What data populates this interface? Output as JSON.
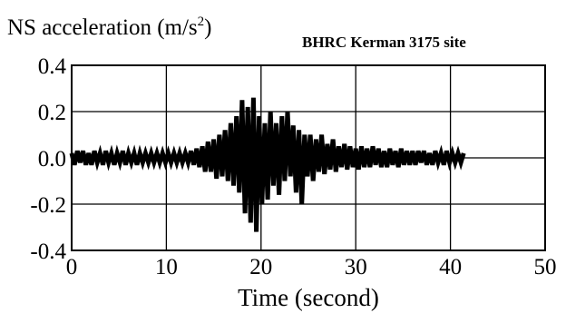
{
  "chart_data": {
    "type": "line",
    "title": "",
    "annotation": "BHRC Kerman 3175 site",
    "ylabel": "NS acceleration (m/s",
    "ylabel_superscript": "2",
    "ylabel_suffix": ")",
    "xlabel": "Time (second)",
    "xlim": [
      0,
      50
    ],
    "ylim": [
      -0.4,
      0.4
    ],
    "xticks": [
      0,
      10,
      20,
      30,
      40,
      50
    ],
    "xtick_labels": [
      "0",
      "10",
      "20",
      "30",
      "40",
      "50"
    ],
    "yticks": [
      -0.4,
      -0.2,
      0.0,
      0.2,
      0.4
    ],
    "ytick_labels": [
      "-0.4",
      "-0.2",
      "0.0",
      "0.2",
      "0.4"
    ],
    "grid": true,
    "line_color": "#000000",
    "series": [
      {
        "x": [
          0.0,
          0.3,
          0.6,
          0.9,
          1.2,
          1.5,
          1.8,
          2.1,
          2.4,
          2.7,
          3.0,
          3.3,
          3.6,
          3.9,
          4.2,
          4.5,
          4.8,
          5.1,
          5.4,
          5.7,
          6.0,
          6.3,
          6.6,
          6.9,
          7.2,
          7.5,
          7.8,
          8.1,
          8.4,
          8.7,
          9.0,
          9.3,
          9.6,
          9.9,
          10.2,
          10.5,
          10.8,
          11.1,
          11.4,
          11.7,
          12.0,
          12.3,
          12.6,
          12.9,
          13.2,
          13.5,
          13.8,
          14.1,
          14.4,
          14.7,
          15.0,
          15.3,
          15.6,
          15.9,
          16.2,
          16.5,
          16.8,
          17.1,
          17.4,
          17.7,
          18.0,
          18.3,
          18.6,
          18.9,
          19.2,
          19.5,
          19.8,
          20.1,
          20.4,
          20.7,
          21.0,
          21.3,
          21.6,
          21.9,
          22.2,
          22.5,
          22.8,
          23.1,
          23.4,
          23.7,
          24.0,
          24.3,
          24.6,
          24.9,
          25.2,
          25.5,
          25.8,
          26.1,
          26.4,
          26.7,
          27.0,
          27.3,
          27.6,
          27.9,
          28.2,
          28.5,
          28.8,
          29.1,
          29.4,
          29.7,
          30.0,
          30.3,
          30.6,
          30.9,
          31.2,
          31.5,
          31.8,
          32.1,
          32.4,
          32.7,
          33.0,
          33.3,
          33.6,
          33.9,
          34.2,
          34.5,
          34.8,
          35.1,
          35.4,
          35.7,
          36.0,
          36.3,
          36.6,
          36.9,
          37.2,
          37.5,
          37.8,
          38.1,
          38.4,
          38.7,
          39.0,
          39.3,
          39.6,
          39.9,
          40.2,
          40.5,
          40.8,
          41.1,
          41.4
        ],
        "y": [
          0.02,
          -0.03,
          0.03,
          -0.02,
          0.03,
          -0.03,
          0.02,
          -0.03,
          0.03,
          -0.02,
          0.02,
          -0.03,
          0.03,
          -0.02,
          0.02,
          -0.03,
          0.02,
          -0.02,
          0.03,
          -0.03,
          0.02,
          -0.02,
          0.02,
          -0.03,
          0.02,
          -0.02,
          0.02,
          -0.02,
          0.02,
          -0.02,
          0.02,
          -0.02,
          0.02,
          -0.02,
          0.02,
          -0.02,
          0.02,
          -0.02,
          0.02,
          -0.02,
          0.02,
          -0.02,
          0.03,
          -0.03,
          0.04,
          -0.04,
          0.05,
          -0.06,
          0.07,
          -0.06,
          0.08,
          -0.09,
          0.1,
          -0.08,
          0.12,
          -0.1,
          0.15,
          -0.12,
          0.18,
          -0.15,
          0.25,
          -0.24,
          0.22,
          -0.28,
          0.26,
          -0.32,
          0.18,
          -0.2,
          0.15,
          -0.18,
          0.2,
          -0.12,
          0.15,
          -0.16,
          0.18,
          -0.1,
          0.2,
          -0.08,
          0.14,
          -0.15,
          0.12,
          -0.2,
          0.1,
          -0.08,
          0.1,
          -0.1,
          0.08,
          -0.06,
          0.1,
          -0.07,
          0.06,
          -0.05,
          0.08,
          -0.06,
          0.05,
          -0.04,
          0.06,
          -0.05,
          0.05,
          -0.04,
          0.04,
          -0.05,
          0.05,
          -0.04,
          0.04,
          -0.04,
          0.05,
          -0.03,
          0.04,
          -0.04,
          0.03,
          -0.04,
          0.04,
          -0.03,
          0.03,
          -0.04,
          0.04,
          -0.03,
          0.03,
          -0.03,
          0.03,
          -0.03,
          0.03,
          -0.02,
          0.03,
          -0.03,
          0.02,
          -0.03,
          0.03,
          -0.02,
          0.02,
          -0.03,
          0.03,
          -0.02,
          0.02,
          -0.02,
          0.02,
          -0.02,
          0.02
        ]
      }
    ]
  }
}
